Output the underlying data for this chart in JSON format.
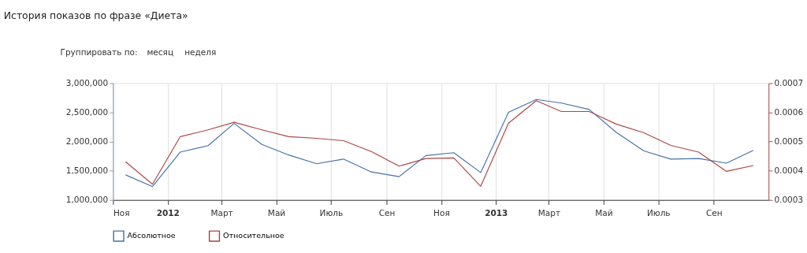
{
  "chart_data": {
    "type": "line",
    "title": "История показов по фразе «Диета»",
    "annotations": [
      "Группировать по:",
      "месяц",
      "неделя"
    ],
    "x": [
      "2011-11-15",
      "2011-12-15",
      "2012-01-15",
      "2012-02-15",
      "2012-03-15",
      "2012-04-15",
      "2012-05-15",
      "2012-06-15",
      "2012-07-15",
      "2012-08-15",
      "2012-09-15",
      "2012-10-15",
      "2012-11-15",
      "2012-12-15",
      "2013-01-15",
      "2013-02-15",
      "2013-03-15",
      "2013-04-15",
      "2013-05-15",
      "2013-06-15",
      "2013-07-15",
      "2013-08-15",
      "2013-09-15",
      "2013-10-15"
    ],
    "series": [
      {
        "name": "Абсолютное",
        "color": "#4572a7",
        "values": [
          1430000,
          1230000,
          1820000,
          1930000,
          2310000,
          1950000,
          1770000,
          1620000,
          1700000,
          1480000,
          1400000,
          1760000,
          1810000,
          1470000,
          2500000,
          2720000,
          2660000,
          2550000,
          2160000,
          1840000,
          1700000,
          1710000,
          1630000,
          1850000
        ]
      },
      {
        "name": "Относительное",
        "color": "#aa4643",
        "axis": "y2",
        "values": [
          0.000431,
          0.000354,
          0.000517,
          0.00054,
          0.000566,
          0.00054,
          0.000517,
          0.000511,
          0.000503,
          0.000466,
          0.000416,
          0.000442,
          0.000444,
          0.000347,
          0.000563,
          0.00064,
          0.000603,
          0.000603,
          0.00056,
          0.00053,
          0.000487,
          0.000464,
          0.000398,
          0.000418
        ]
      }
    ],
    "xlim": [
      "2011-11-01",
      "2013-11-01"
    ],
    "xticks": [
      {
        "value": "2011-11-01",
        "label": "Ноя"
      },
      {
        "value": "2012-01-01",
        "label": "2012"
      },
      {
        "value": "2012-03-01",
        "label": "Март"
      },
      {
        "value": "2012-05-01",
        "label": "Май"
      },
      {
        "value": "2012-07-01",
        "label": "Июль"
      },
      {
        "value": "2012-09-01",
        "label": "Сен"
      },
      {
        "value": "2012-11-01",
        "label": "Ноя"
      },
      {
        "value": "2013-01-01",
        "label": "2013"
      },
      {
        "value": "2013-03-01",
        "label": "Март"
      },
      {
        "value": "2013-05-01",
        "label": "Май"
      },
      {
        "value": "2013-07-01",
        "label": "Июль"
      },
      {
        "value": "2013-09-01",
        "label": "Сен"
      }
    ],
    "ylim": [
      1000000,
      3000000
    ],
    "yticks": [
      {
        "value": 1000000,
        "label": "1,000,000"
      },
      {
        "value": 1500000,
        "label": "1,500,000"
      },
      {
        "value": 2000000,
        "label": "2,000,000"
      },
      {
        "value": 2500000,
        "label": "2,500,000"
      },
      {
        "value": 3000000,
        "label": "3,000,000"
      }
    ],
    "y2lim": [
      0.0003,
      0.0007
    ],
    "y2ticks": [
      0.0003,
      0.0004,
      0.0005,
      0.0006,
      0.0007
    ],
    "grid": "x",
    "legend": "bottom left",
    "marker": "none",
    "line_style": "solid"
  }
}
